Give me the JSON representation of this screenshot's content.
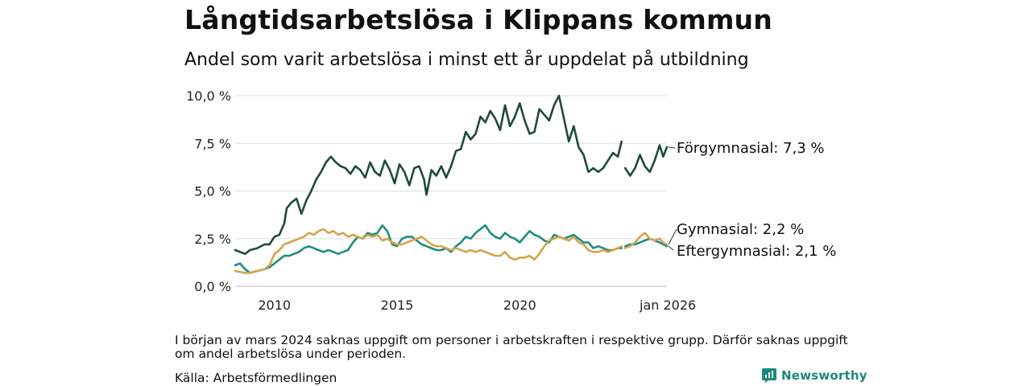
{
  "chart_data": {
    "type": "line",
    "title": "Långtidsarbetslösa i Klippans kommun",
    "subtitle": "Andel som varit arbetslösa i minst ett år uppdelat på utbildning",
    "ylim": [
      0,
      10
    ],
    "yticks": [
      "0,0 %",
      "2,5 %",
      "5,0 %",
      "7,5 %",
      "10,0 %"
    ],
    "ytick_values": [
      0,
      2.5,
      5,
      7.5,
      10
    ],
    "xlim": [
      2008.4,
      2026.0
    ],
    "xticks": [
      "2010",
      "2015",
      "2020",
      "jan 2026"
    ],
    "xtick_values": [
      2010,
      2015,
      2020,
      2026
    ],
    "gap": [
      2024.15,
      2024.3
    ],
    "series": [
      {
        "name": "Förgymnasial",
        "label": "Förgymnasial: 7,3 %",
        "color": "#1f4a3d",
        "points": [
          [
            2008.4,
            1.9
          ],
          [
            2008.8,
            1.7
          ],
          [
            2009.0,
            1.9
          ],
          [
            2009.3,
            2.0
          ],
          [
            2009.6,
            2.2
          ],
          [
            2009.8,
            2.2
          ],
          [
            2010.0,
            2.6
          ],
          [
            2010.2,
            2.7
          ],
          [
            2010.4,
            3.3
          ],
          [
            2010.5,
            4.1
          ],
          [
            2010.7,
            4.4
          ],
          [
            2010.9,
            4.6
          ],
          [
            2011.0,
            4.2
          ],
          [
            2011.1,
            3.8
          ],
          [
            2011.3,
            4.5
          ],
          [
            2011.5,
            5.0
          ],
          [
            2011.7,
            5.6
          ],
          [
            2011.9,
            6.0
          ],
          [
            2012.1,
            6.5
          ],
          [
            2012.3,
            6.8
          ],
          [
            2012.5,
            6.5
          ],
          [
            2012.7,
            6.3
          ],
          [
            2012.9,
            6.2
          ],
          [
            2013.1,
            5.9
          ],
          [
            2013.3,
            6.3
          ],
          [
            2013.5,
            6.1
          ],
          [
            2013.7,
            5.7
          ],
          [
            2013.9,
            6.5
          ],
          [
            2014.1,
            6.0
          ],
          [
            2014.3,
            5.8
          ],
          [
            2014.5,
            6.6
          ],
          [
            2014.7,
            6.1
          ],
          [
            2014.9,
            5.4
          ],
          [
            2015.1,
            6.4
          ],
          [
            2015.3,
            6.0
          ],
          [
            2015.5,
            5.3
          ],
          [
            2015.7,
            6.2
          ],
          [
            2015.9,
            6.3
          ],
          [
            2016.1,
            5.6
          ],
          [
            2016.2,
            4.8
          ],
          [
            2016.4,
            6.1
          ],
          [
            2016.6,
            5.8
          ],
          [
            2016.8,
            6.3
          ],
          [
            2017.0,
            5.7
          ],
          [
            2017.2,
            6.3
          ],
          [
            2017.4,
            7.1
          ],
          [
            2017.6,
            7.2
          ],
          [
            2017.8,
            8.1
          ],
          [
            2018.0,
            7.7
          ],
          [
            2018.2,
            8.0
          ],
          [
            2018.4,
            8.9
          ],
          [
            2018.6,
            8.6
          ],
          [
            2018.8,
            9.2
          ],
          [
            2019.0,
            8.8
          ],
          [
            2019.2,
            8.2
          ],
          [
            2019.4,
            9.5
          ],
          [
            2019.6,
            8.4
          ],
          [
            2019.8,
            8.9
          ],
          [
            2020.0,
            9.6
          ],
          [
            2020.2,
            8.7
          ],
          [
            2020.4,
            8.0
          ],
          [
            2020.6,
            8.1
          ],
          [
            2020.8,
            9.3
          ],
          [
            2021.0,
            9.0
          ],
          [
            2021.2,
            8.7
          ],
          [
            2021.4,
            9.5
          ],
          [
            2021.6,
            10.0
          ],
          [
            2021.8,
            8.8
          ],
          [
            2022.0,
            7.6
          ],
          [
            2022.2,
            8.4
          ],
          [
            2022.4,
            7.3
          ],
          [
            2022.6,
            6.9
          ],
          [
            2022.8,
            6.0
          ],
          [
            2023.0,
            6.2
          ],
          [
            2023.2,
            6.0
          ],
          [
            2023.4,
            6.2
          ],
          [
            2023.6,
            6.6
          ],
          [
            2023.8,
            7.0
          ],
          [
            2024.0,
            6.8
          ],
          [
            2024.15,
            7.6
          ],
          [
            2024.3,
            6.2
          ],
          [
            2024.5,
            5.8
          ],
          [
            2024.7,
            6.2
          ],
          [
            2024.9,
            6.9
          ],
          [
            2025.1,
            6.3
          ],
          [
            2025.3,
            6.0
          ],
          [
            2025.5,
            6.6
          ],
          [
            2025.7,
            7.4
          ],
          [
            2025.85,
            6.8
          ],
          [
            2026.0,
            7.3
          ]
        ]
      },
      {
        "name": "Gymnasial",
        "label": "Gymnasial: 2,2 %",
        "color": "#d4a44c",
        "points": [
          [
            2008.4,
            0.8
          ],
          [
            2008.8,
            0.7
          ],
          [
            2009.0,
            0.7
          ],
          [
            2009.3,
            0.8
          ],
          [
            2009.6,
            0.9
          ],
          [
            2009.8,
            1.1
          ],
          [
            2010.0,
            1.7
          ],
          [
            2010.2,
            1.9
          ],
          [
            2010.4,
            2.2
          ],
          [
            2010.6,
            2.3
          ],
          [
            2010.8,
            2.4
          ],
          [
            2011.0,
            2.5
          ],
          [
            2011.2,
            2.6
          ],
          [
            2011.4,
            2.8
          ],
          [
            2011.6,
            2.7
          ],
          [
            2011.8,
            2.9
          ],
          [
            2012.0,
            3.0
          ],
          [
            2012.2,
            2.8
          ],
          [
            2012.4,
            2.9
          ],
          [
            2012.6,
            2.7
          ],
          [
            2012.8,
            2.8
          ],
          [
            2013.0,
            2.6
          ],
          [
            2013.2,
            2.7
          ],
          [
            2013.4,
            2.6
          ],
          [
            2013.6,
            2.5
          ],
          [
            2013.8,
            2.7
          ],
          [
            2014.0,
            2.6
          ],
          [
            2014.2,
            2.7
          ],
          [
            2014.4,
            2.4
          ],
          [
            2014.6,
            2.5
          ],
          [
            2014.8,
            2.3
          ],
          [
            2015.0,
            2.2
          ],
          [
            2015.2,
            2.2
          ],
          [
            2015.4,
            2.3
          ],
          [
            2015.6,
            2.4
          ],
          [
            2015.8,
            2.5
          ],
          [
            2016.0,
            2.6
          ],
          [
            2016.2,
            2.4
          ],
          [
            2016.4,
            2.2
          ],
          [
            2016.6,
            2.1
          ],
          [
            2016.8,
            2.1
          ],
          [
            2017.0,
            2.0
          ],
          [
            2017.2,
            1.9
          ],
          [
            2017.4,
            2.0
          ],
          [
            2017.6,
            1.9
          ],
          [
            2017.8,
            1.8
          ],
          [
            2018.0,
            1.9
          ],
          [
            2018.2,
            1.8
          ],
          [
            2018.4,
            1.9
          ],
          [
            2018.6,
            1.8
          ],
          [
            2018.8,
            1.7
          ],
          [
            2019.0,
            1.6
          ],
          [
            2019.2,
            1.6
          ],
          [
            2019.4,
            1.8
          ],
          [
            2019.6,
            1.5
          ],
          [
            2019.8,
            1.4
          ],
          [
            2020.0,
            1.5
          ],
          [
            2020.2,
            1.5
          ],
          [
            2020.4,
            1.6
          ],
          [
            2020.6,
            1.4
          ],
          [
            2020.8,
            1.7
          ],
          [
            2021.0,
            2.1
          ],
          [
            2021.2,
            2.4
          ],
          [
            2021.4,
            2.5
          ],
          [
            2021.6,
            2.6
          ],
          [
            2021.8,
            2.5
          ],
          [
            2022.0,
            2.4
          ],
          [
            2022.2,
            2.6
          ],
          [
            2022.4,
            2.3
          ],
          [
            2022.6,
            2.2
          ],
          [
            2022.8,
            1.9
          ],
          [
            2023.0,
            1.8
          ],
          [
            2023.2,
            1.8
          ],
          [
            2023.4,
            1.9
          ],
          [
            2023.6,
            1.8
          ],
          [
            2023.8,
            1.9
          ],
          [
            2024.0,
            2.0
          ],
          [
            2024.15,
            2.1
          ],
          [
            2024.3,
            2.0
          ],
          [
            2024.5,
            2.1
          ],
          [
            2024.7,
            2.3
          ],
          [
            2024.9,
            2.6
          ],
          [
            2025.1,
            2.8
          ],
          [
            2025.3,
            2.5
          ],
          [
            2025.5,
            2.4
          ],
          [
            2025.7,
            2.5
          ],
          [
            2025.85,
            2.3
          ],
          [
            2026.0,
            2.2
          ]
        ]
      },
      {
        "name": "Eftergymnasial",
        "label": "Eftergymnasial: 2,1 %",
        "color": "#1e8e7e",
        "points": [
          [
            2008.4,
            1.1
          ],
          [
            2008.6,
            1.2
          ],
          [
            2008.8,
            0.9
          ],
          [
            2009.0,
            0.7
          ],
          [
            2009.3,
            0.8
          ],
          [
            2009.6,
            0.9
          ],
          [
            2009.8,
            1.0
          ],
          [
            2010.0,
            1.2
          ],
          [
            2010.2,
            1.4
          ],
          [
            2010.4,
            1.6
          ],
          [
            2010.6,
            1.6
          ],
          [
            2010.8,
            1.7
          ],
          [
            2011.0,
            1.8
          ],
          [
            2011.2,
            2.0
          ],
          [
            2011.4,
            2.1
          ],
          [
            2011.6,
            2.0
          ],
          [
            2011.8,
            1.9
          ],
          [
            2012.0,
            1.8
          ],
          [
            2012.2,
            1.9
          ],
          [
            2012.4,
            1.8
          ],
          [
            2012.6,
            1.7
          ],
          [
            2012.8,
            1.8
          ],
          [
            2013.0,
            1.9
          ],
          [
            2013.2,
            2.3
          ],
          [
            2013.4,
            2.6
          ],
          [
            2013.6,
            2.5
          ],
          [
            2013.8,
            2.8
          ],
          [
            2014.0,
            2.7
          ],
          [
            2014.2,
            2.8
          ],
          [
            2014.4,
            3.2
          ],
          [
            2014.6,
            2.9
          ],
          [
            2014.8,
            2.2
          ],
          [
            2015.0,
            2.1
          ],
          [
            2015.2,
            2.5
          ],
          [
            2015.4,
            2.6
          ],
          [
            2015.6,
            2.6
          ],
          [
            2015.8,
            2.4
          ],
          [
            2016.0,
            2.2
          ],
          [
            2016.2,
            2.1
          ],
          [
            2016.4,
            2.0
          ],
          [
            2016.6,
            1.9
          ],
          [
            2016.8,
            1.9
          ],
          [
            2017.0,
            2.0
          ],
          [
            2017.2,
            1.8
          ],
          [
            2017.4,
            2.1
          ],
          [
            2017.6,
            2.3
          ],
          [
            2017.8,
            2.6
          ],
          [
            2018.0,
            2.5
          ],
          [
            2018.2,
            2.8
          ],
          [
            2018.4,
            3.0
          ],
          [
            2018.6,
            3.2
          ],
          [
            2018.8,
            2.8
          ],
          [
            2019.0,
            2.6
          ],
          [
            2019.2,
            2.5
          ],
          [
            2019.4,
            2.8
          ],
          [
            2019.6,
            2.6
          ],
          [
            2019.8,
            2.5
          ],
          [
            2020.0,
            2.3
          ],
          [
            2020.2,
            2.6
          ],
          [
            2020.4,
            2.9
          ],
          [
            2020.6,
            2.7
          ],
          [
            2020.8,
            2.6
          ],
          [
            2021.0,
            2.4
          ],
          [
            2021.2,
            2.3
          ],
          [
            2021.4,
            2.7
          ],
          [
            2021.6,
            2.6
          ],
          [
            2021.8,
            2.5
          ],
          [
            2022.0,
            2.6
          ],
          [
            2022.2,
            2.7
          ],
          [
            2022.4,
            2.5
          ],
          [
            2022.6,
            2.3
          ],
          [
            2022.8,
            2.3
          ],
          [
            2023.0,
            2.0
          ],
          [
            2023.2,
            2.1
          ],
          [
            2023.4,
            2.0
          ],
          [
            2023.6,
            1.9
          ],
          [
            2023.8,
            1.9
          ],
          [
            2024.0,
            2.0
          ],
          [
            2024.15,
            2.0
          ],
          [
            2024.3,
            2.1
          ],
          [
            2024.5,
            2.2
          ],
          [
            2024.7,
            2.2
          ],
          [
            2024.9,
            2.3
          ],
          [
            2025.1,
            2.4
          ],
          [
            2025.3,
            2.5
          ],
          [
            2025.5,
            2.4
          ],
          [
            2025.7,
            2.3
          ],
          [
            2025.85,
            2.2
          ],
          [
            2026.0,
            2.1
          ]
        ]
      }
    ],
    "note": "I början av mars 2024 saknas uppgift om personer i arbetskraften i respektive grupp. Därför saknas uppgift om andel arbetslösa under perioden.",
    "source": "Källa: Arbetsförmedlingen"
  },
  "brand": {
    "name": "Newsworthy",
    "color": "#1a8a7a"
  }
}
